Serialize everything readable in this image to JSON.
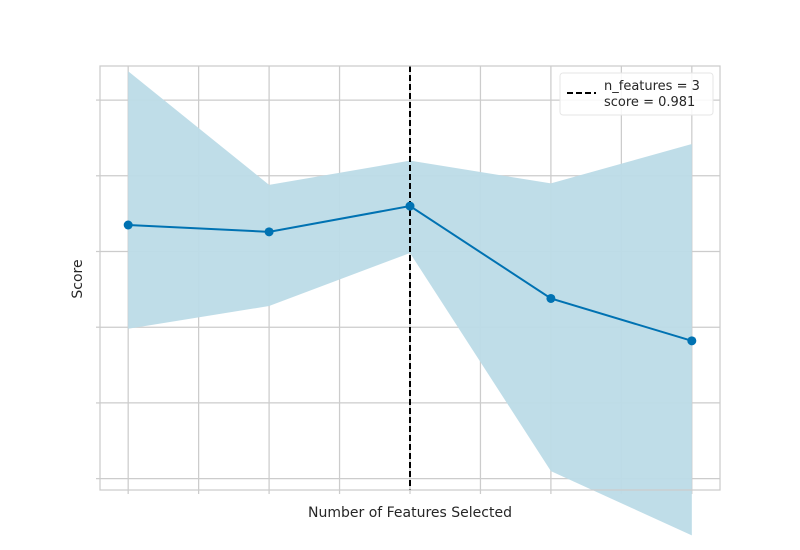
{
  "chart_data": {
    "type": "line",
    "xlabel": "Number of Features Selected",
    "ylabel": "Score",
    "x": [
      1,
      2,
      3,
      4,
      5
    ],
    "xlim": [
      0.8,
      5.2
    ],
    "ylim": [
      0.9435,
      0.9995
    ],
    "grid": true,
    "show_tick_labels": false,
    "series": [
      {
        "values": [
          0.9785,
          0.9776,
          0.981,
          0.9688,
          0.9632
        ],
        "upper": [
          0.9988,
          0.9838,
          0.987,
          0.984,
          0.9892
        ],
        "lower": [
          0.9648,
          0.9678,
          0.9748,
          0.946,
          0.9375
        ],
        "color": "#0072b2",
        "band_color": "#bcdbe7"
      }
    ],
    "selected": {
      "x": 3,
      "color": "#000000",
      "label_lines": [
        "n_features = 3",
        "score = 0.981"
      ]
    },
    "legend_position": "top-right"
  }
}
